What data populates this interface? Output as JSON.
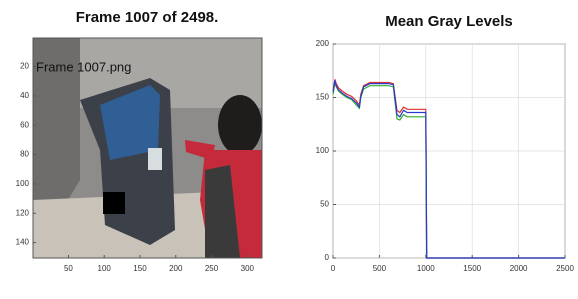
{
  "chart_data": [
    {
      "type": "image",
      "title": "Frame 1007 of 2498.",
      "annotation": "Frame 1007.png",
      "xlim": [
        0.5,
        320.5
      ],
      "ylim": [
        0.5,
        150.5
      ],
      "xticks": [
        50,
        100,
        150,
        200,
        250,
        300
      ],
      "yticks": [
        20,
        40,
        60,
        80,
        100,
        120,
        140
      ]
    },
    {
      "type": "line",
      "title": "Mean Gray Levels",
      "x": [
        1,
        20,
        35,
        60,
        100,
        150,
        200,
        250,
        285,
        300,
        330,
        400,
        500,
        600,
        650,
        690,
        720,
        760,
        800,
        900,
        1000,
        1010,
        1500,
        2000,
        2498
      ],
      "series": [
        {
          "color": "#e03030",
          "values": [
            157,
            167,
            163,
            159,
            156,
            153,
            151,
            147,
            143,
            153,
            161,
            164,
            164,
            164,
            163,
            138,
            136,
            141,
            139,
            139,
            139,
            0,
            0,
            0,
            0
          ]
        },
        {
          "color": "#30b030",
          "values": [
            153,
            164,
            160,
            156,
            153,
            150,
            148,
            143,
            140,
            150,
            158,
            161,
            161,
            161,
            160,
            130,
            129,
            134,
            132,
            132,
            132,
            0,
            0,
            0,
            0
          ]
        },
        {
          "color": "#2a3ad0",
          "values": [
            155,
            166,
            161,
            157,
            154,
            151,
            149,
            145,
            141,
            151,
            160,
            163,
            163,
            163,
            162,
            134,
            132,
            138,
            136,
            136,
            136,
            0,
            0,
            0,
            0
          ]
        }
      ],
      "xlim": [
        0,
        2500
      ],
      "ylim": [
        0,
        200
      ],
      "xticks": [
        0,
        500,
        1000,
        1500,
        2000,
        2500
      ],
      "yticks": [
        0,
        50,
        100,
        150,
        200
      ],
      "grid": true
    }
  ]
}
